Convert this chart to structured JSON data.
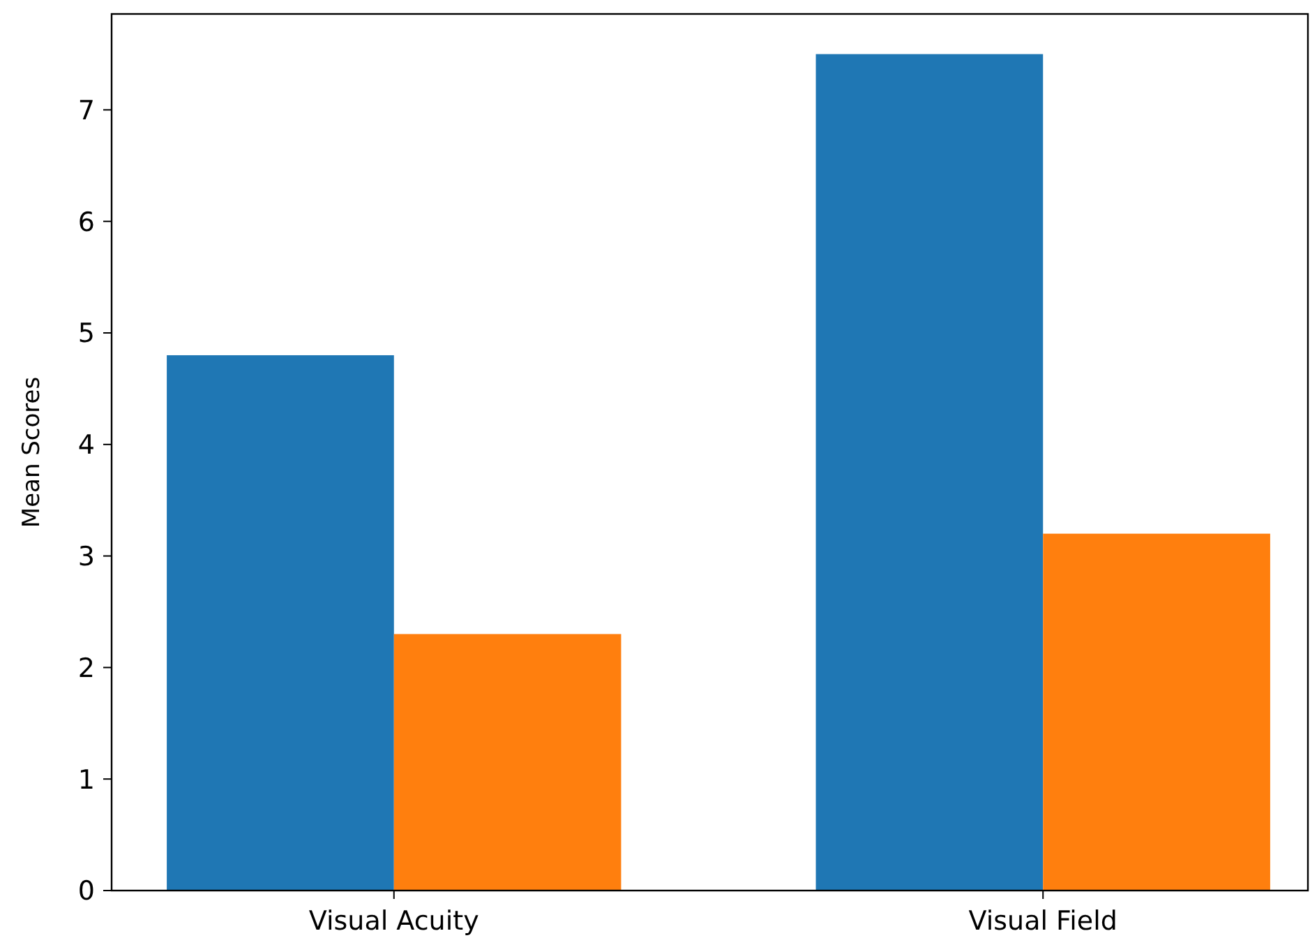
{
  "chart_data": {
    "type": "bar",
    "ylabel": "Mean Scores",
    "categories": [
      "Visual Acuity",
      "Visual Field"
    ],
    "series": [
      {
        "color": "#1f77b4",
        "values": [
          4.8,
          7.5
        ]
      },
      {
        "color": "#ff7f0e",
        "values": [
          2.3,
          3.2
        ]
      }
    ],
    "ylim": [
      0,
      7.86
    ],
    "yticks": [
      0,
      1,
      2,
      3,
      4,
      5,
      6,
      7
    ],
    "grid": false
  }
}
